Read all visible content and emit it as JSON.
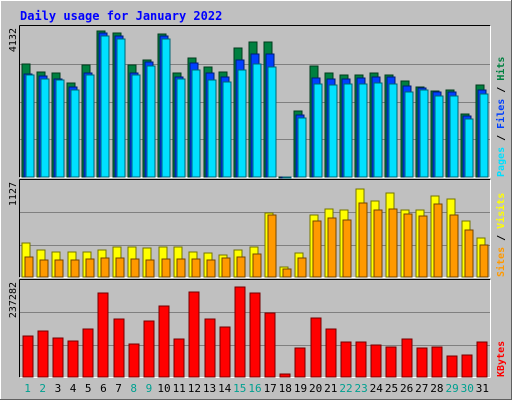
{
  "chart_data": {
    "type": "bar",
    "title": "Daily usage for January 2022",
    "categories": [
      "1",
      "2",
      "3",
      "4",
      "5",
      "6",
      "7",
      "8",
      "9",
      "10",
      "11",
      "12",
      "13",
      "14",
      "15",
      "16",
      "17",
      "18",
      "19",
      "20",
      "21",
      "22",
      "23",
      "24",
      "25",
      "26",
      "27",
      "28",
      "29",
      "30",
      "31"
    ],
    "weekend_days": [
      "1",
      "2",
      "8",
      "9",
      "15",
      "16",
      "22",
      "23",
      "29",
      "30"
    ],
    "panels": [
      {
        "id": "top",
        "ymax_label": "4132",
        "ylim": [
          0,
          4132
        ],
        "legend": [
          "Pages",
          "Files",
          "Hits"
        ],
        "series": [
          {
            "name": "Hits",
            "color": "#008040",
            "values": [
              3120,
              2920,
              2880,
              2620,
              3100,
              4060,
              3980,
              3100,
              3250,
              3970,
              2880,
              3300,
              3050,
              2900,
              3580,
              3750,
              3750,
              5,
              1840,
              3070,
              2890,
              2820,
              2840,
              2880,
              2840,
              2660,
              2500,
              2380,
              2420,
              1760,
              2560
            ]
          },
          {
            "name": "Files",
            "color": "#0040ff",
            "values": [
              2850,
              2800,
              2720,
              2500,
              2880,
              3990,
              3900,
              2880,
              3200,
              3920,
              2760,
              3150,
              2880,
              2780,
              3250,
              3400,
              3400,
              5,
              1720,
              2740,
              2720,
              2720,
              2750,
              2780,
              2760,
              2520,
              2460,
              2350,
              2370,
              1700,
              2410
            ]
          },
          {
            "name": "Pages",
            "color": "#00e0ff",
            "values": [
              2840,
              2720,
              2680,
              2420,
              2840,
              3910,
              3830,
              2840,
              3080,
              3830,
              2720,
              2970,
              2700,
              2640,
              2960,
              3120,
              3040,
              5,
              1630,
              2580,
              2560,
              2580,
              2580,
              2600,
              2580,
              2360,
              2410,
              2260,
              2260,
              1600,
              2300
            ]
          }
        ]
      },
      {
        "id": "middle",
        "ymax_label": "1127",
        "ylim": [
          0,
          1127
        ],
        "legend": [
          "Sites",
          "Visits"
        ],
        "series": [
          {
            "name": "Visits",
            "color": "#ffff00",
            "values": [
              400,
              320,
              300,
              300,
              300,
              320,
              360,
              350,
              340,
              360,
              360,
              300,
              280,
              260,
              320,
              360,
              760,
              120,
              290,
              740,
              810,
              800,
              1040,
              900,
              1000,
              800,
              790,
              960,
              920,
              670,
              460
            ]
          },
          {
            "name": "Sites",
            "color": "#ff9900",
            "values": [
              240,
              200,
              200,
              200,
              210,
              220,
              220,
              210,
              200,
              210,
              210,
              210,
              200,
              220,
              240,
              270,
              740,
              100,
              220,
              660,
              700,
              680,
              880,
              800,
              810,
              750,
              720,
              870,
              730,
              560,
              380
            ]
          }
        ]
      },
      {
        "id": "bottom",
        "ymax_label": "237282",
        "ylim": [
          0,
          237282
        ],
        "legend": [
          "KBytes"
        ],
        "series": [
          {
            "name": "KBytes",
            "color": "#ff0000",
            "values": [
              103000,
              114000,
              97000,
              91000,
              119000,
              210000,
              146000,
              83000,
              139000,
              178000,
              94000,
              212000,
              145000,
              125000,
              224000,
              211000,
              159000,
              8000,
              72000,
              147000,
              121000,
              88000,
              88000,
              80000,
              76000,
              94000,
              73000,
              74000,
              52000,
              54000,
              88000
            ]
          }
        ]
      }
    ],
    "label_colors": {
      "weekday": "#008040",
      "weekend": "#00a090",
      "title": "#0000ff",
      "axis": "#000000"
    }
  }
}
